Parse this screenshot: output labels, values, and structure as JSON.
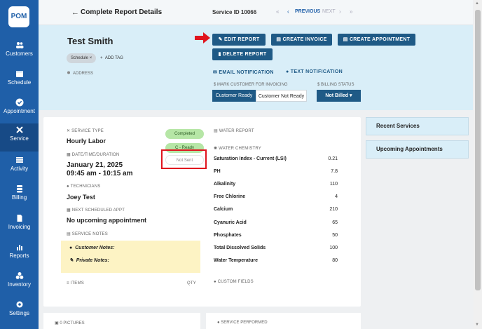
{
  "sidebar": {
    "logo": "POM",
    "items": [
      {
        "label": "Customers",
        "icon": "people-icon"
      },
      {
        "label": "Schedule",
        "icon": "calendar-icon"
      },
      {
        "label": "Appointment",
        "icon": "check-circle-icon"
      },
      {
        "label": "Service",
        "icon": "tools-icon"
      },
      {
        "label": "Activity",
        "icon": "list-icon"
      },
      {
        "label": "Billing",
        "icon": "stack-icon"
      },
      {
        "label": "Invoicing",
        "icon": "document-icon"
      },
      {
        "label": "Reports",
        "icon": "bar-chart-icon"
      },
      {
        "label": "Inventory",
        "icon": "boxes-icon"
      },
      {
        "label": "Settings",
        "icon": "gear-icon"
      }
    ]
  },
  "topbar": {
    "title": "Complete Report Details",
    "service_id": "Service ID 10066",
    "previous": "PREVIOUS",
    "next": "NEXT"
  },
  "header": {
    "customer_name": "Test Smith",
    "tag": "Schedule",
    "tag_remove": "×",
    "add_tag": "ADD TAG",
    "address_label": "ADDRESS",
    "buttons": {
      "edit_report": "EDIT REPORT",
      "create_invoice": "CREATE INVOICE",
      "create_appointment": "CREATE APPOINTMENT",
      "delete_report": "DELETE REPORT"
    },
    "email_notification": "EMAIL NOTIFICATION",
    "text_notification": "TEXT NOTIFICATION",
    "mark_invoicing_label": "MARK CUSTOMER FOR INVOICING",
    "customer_ready": "Customer Ready",
    "customer_not_ready": "Customer Not Ready",
    "billing_status_label": "BILLING STATUS",
    "billing_status_value": "Not Billed"
  },
  "report": {
    "service_type_label": "SERVICE TYPE",
    "service_type": "Hourly Labor",
    "status_completed": "Completed",
    "status_ready": "C - Ready",
    "status_not_sent": "Not Sent",
    "datetime_label": "DATE/TIME/DURATION",
    "date": "January 21, 2025",
    "time": "09:45 am - 10:15 am",
    "technicians_label": "TECHNICIANS",
    "technician": "Joey Test",
    "next_appt_label": "NEXT SCHEDULED APPT",
    "next_appt": "No upcoming appointment",
    "service_notes_label": "SERVICE NOTES",
    "customer_notes": "Customer Notes:",
    "private_notes": "Private Notes:",
    "items_label": "ITEMS",
    "qty_label": "QTY",
    "water_report_label": "WATER REPORT",
    "water_chemistry_label": "WATER CHEMISTRY",
    "custom_fields_label": "CUSTOM FIELDS",
    "chemistry": [
      {
        "name": "Saturation Index - Current (LSI)",
        "value": "0.21"
      },
      {
        "name": "PH",
        "value": "7.8"
      },
      {
        "name": "Alkalinity",
        "value": "110"
      },
      {
        "name": "Free Chlorine",
        "value": "4"
      },
      {
        "name": "Calcium",
        "value": "210"
      },
      {
        "name": "Cyanuric Acid",
        "value": "65"
      },
      {
        "name": "Phosphates",
        "value": "50"
      },
      {
        "name": "Total Dissolved Solids",
        "value": "100"
      },
      {
        "name": "Water Temperature",
        "value": "80"
      }
    ]
  },
  "side": {
    "recent_services": "Recent Services",
    "upcoming_appointments": "Upcoming Appointments"
  },
  "bottom": {
    "pictures": "0 PICTURES",
    "service_performed": "SERVICE PERFORMED"
  },
  "colors": {
    "sidebar": "#1f5fa8",
    "button": "#1f5a86",
    "header_bg": "#d9eef8",
    "status_green": "#b6e6a6",
    "highlight_red": "#e0141e",
    "notes_yellow": "#fdf3c4"
  }
}
